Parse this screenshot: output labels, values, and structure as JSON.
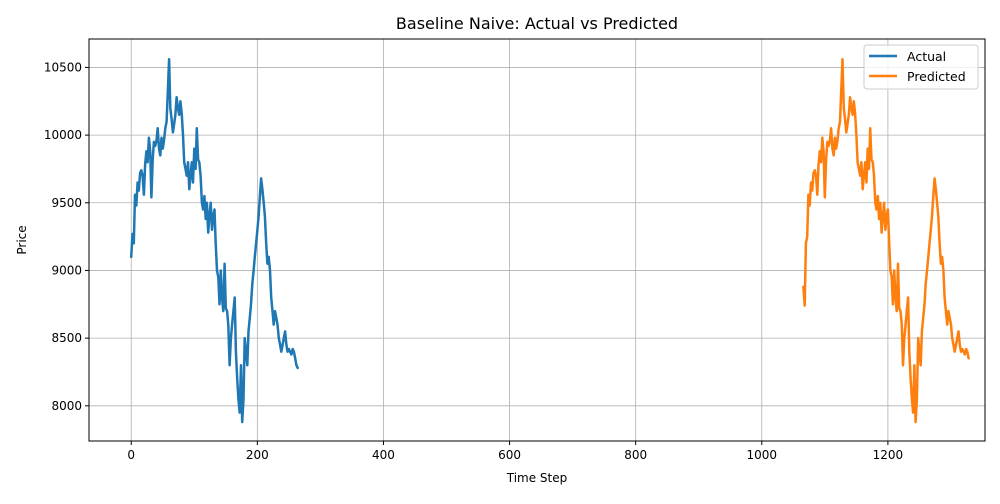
{
  "chart_data": {
    "type": "line",
    "title": "Baseline Naive: Actual vs Predicted",
    "xlabel": "Time Step",
    "ylabel": "Price",
    "xlim": [
      -67,
      1354
    ],
    "ylim": [
      7740,
      10710
    ],
    "xticks": [
      0,
      200,
      400,
      600,
      800,
      1000,
      1200
    ],
    "yticks": [
      8000,
      8500,
      9000,
      9500,
      10000,
      10500
    ],
    "grid": true,
    "legend_position": "top-right",
    "series": [
      {
        "name": "Actual",
        "color": "#1f77b4",
        "x_start": 0,
        "x_step": 2,
        "values": [
          9100,
          9270,
          9200,
          9560,
          9480,
          9650,
          9590,
          9720,
          9740,
          9700,
          9560,
          9780,
          9880,
          9800,
          9980,
          9880,
          9540,
          9820,
          9950,
          9920,
          9960,
          10050,
          9900,
          9850,
          9980,
          9900,
          9960,
          10050,
          10100,
          10320,
          10560,
          10200,
          10120,
          10020,
          10080,
          10150,
          10280,
          10200,
          10150,
          10250,
          10160,
          10000,
          9800,
          9750,
          9700,
          9800,
          9600,
          9700,
          9800,
          9650,
          9900,
          9750,
          10050,
          9820,
          9800,
          9700,
          9500,
          9450,
          9550,
          9380,
          9500,
          9280,
          9400,
          9500,
          9300,
          9400,
          9450,
          9200,
          9000,
          8950,
          8750,
          9000,
          8800,
          8700,
          9050,
          8720,
          8700,
          8600,
          8300,
          8500,
          8600,
          8700,
          8800,
          8400,
          8200,
          8050,
          7950,
          8300,
          7880,
          8050,
          8500,
          8400,
          8300,
          8550,
          8650,
          8750,
          8900,
          9000,
          9100,
          9200,
          9300,
          9400,
          9550,
          9680,
          9600,
          9500,
          9400,
          9200,
          9050,
          9100,
          9000,
          8800,
          8700,
          8600,
          8700,
          8650,
          8600,
          8500,
          8450,
          8400,
          8450,
          8500,
          8550,
          8450,
          8400,
          8420,
          8400,
          8380,
          8420,
          8400,
          8350,
          8300,
          8280
        ]
      },
      {
        "name": "Predicted",
        "color": "#ff7f0e",
        "x_start": 1066,
        "x_step": 2,
        "values": [
          8880,
          8740,
          9200,
          9250,
          9560,
          9480,
          9650,
          9590,
          9720,
          9740,
          9700,
          9560,
          9780,
          9880,
          9800,
          9980,
          9880,
          9540,
          9820,
          9950,
          9920,
          9960,
          10050,
          9900,
          9850,
          9980,
          9900,
          9960,
          10050,
          10100,
          10320,
          10560,
          10200,
          10120,
          10020,
          10080,
          10150,
          10280,
          10200,
          10150,
          10250,
          10160,
          10000,
          9800,
          9750,
          9700,
          9800,
          9600,
          9700,
          9800,
          9650,
          9900,
          9750,
          10050,
          9820,
          9800,
          9700,
          9500,
          9450,
          9550,
          9380,
          9500,
          9280,
          9400,
          9500,
          9300,
          9400,
          9450,
          9200,
          9000,
          8950,
          8750,
          9000,
          8800,
          8700,
          9050,
          8720,
          8700,
          8600,
          8300,
          8500,
          8600,
          8700,
          8800,
          8400,
          8200,
          8050,
          7950,
          8300,
          7880,
          8050,
          8500,
          8400,
          8300,
          8550,
          8650,
          8750,
          8900,
          9000,
          9100,
          9200,
          9300,
          9400,
          9550,
          9680,
          9600,
          9500,
          9400,
          9200,
          9050,
          9100,
          9000,
          8800,
          8700,
          8600,
          8700,
          8650,
          8600,
          8500,
          8450,
          8400,
          8450,
          8500,
          8550,
          8450,
          8400,
          8420,
          8400,
          8380,
          8420,
          8400,
          8350
        ]
      }
    ]
  }
}
